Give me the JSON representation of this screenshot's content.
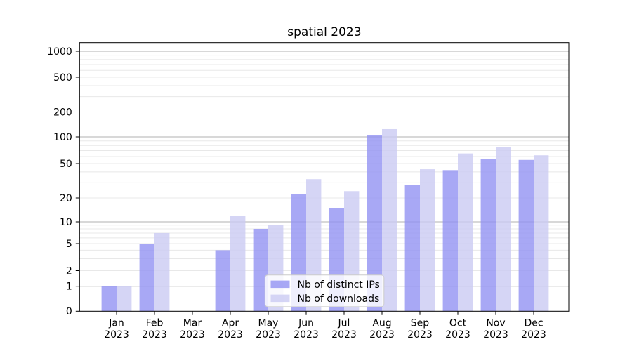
{
  "chart_data": {
    "type": "bar",
    "title": "spatial 2023",
    "categories": [
      "Jan 2023",
      "Feb 2023",
      "Mar 2023",
      "Apr 2023",
      "May 2023",
      "Jun 2023",
      "Jul 2023",
      "Aug 2023",
      "Sep 2023",
      "Oct 2023",
      "Nov 2023",
      "Dec 2023"
    ],
    "category_month_labels": [
      "Jan",
      "Feb",
      "Mar",
      "Apr",
      "May",
      "Jun",
      "Jul",
      "Aug",
      "Sep",
      "Oct",
      "Nov",
      "Dec"
    ],
    "category_year_label": "2023",
    "series": [
      {
        "name": "Nb of distinct IPs",
        "color": "#9292f2",
        "values": [
          1,
          5,
          0,
          4,
          8,
          22,
          15,
          105,
          28,
          42,
          56,
          55
        ]
      },
      {
        "name": "Nb of downloads",
        "color": "#cbcbf3",
        "values": [
          1,
          7,
          0,
          12,
          9,
          33,
          24,
          124,
          43,
          65,
          77,
          62
        ]
      }
    ],
    "y_axis": {
      "scale": "symlog-like",
      "ticks": [
        0,
        1,
        2,
        5,
        10,
        20,
        50,
        100,
        200,
        500,
        1000
      ],
      "tick_labels": [
        "0",
        "1",
        "2",
        "5",
        "10",
        "20",
        "50",
        "100",
        "200",
        "500",
        "1000"
      ],
      "major_gridlines": [
        1,
        10,
        100,
        1000
      ],
      "minor_gridlines": [
        2,
        3,
        4,
        5,
        6,
        7,
        8,
        9,
        20,
        30,
        40,
        50,
        60,
        70,
        80,
        90,
        200,
        300,
        400,
        500,
        600,
        700,
        800,
        900
      ]
    },
    "x_axis": {
      "label": ""
    },
    "legend": {
      "position": "lower-center",
      "entries": [
        "Nb of distinct IPs",
        "Nb of downloads"
      ]
    },
    "grid": true,
    "background": "#ffffff",
    "colors": {
      "major_grid": "#b0b0b0",
      "minor_grid": "#e8e8e8",
      "spine": "#000000"
    }
  }
}
